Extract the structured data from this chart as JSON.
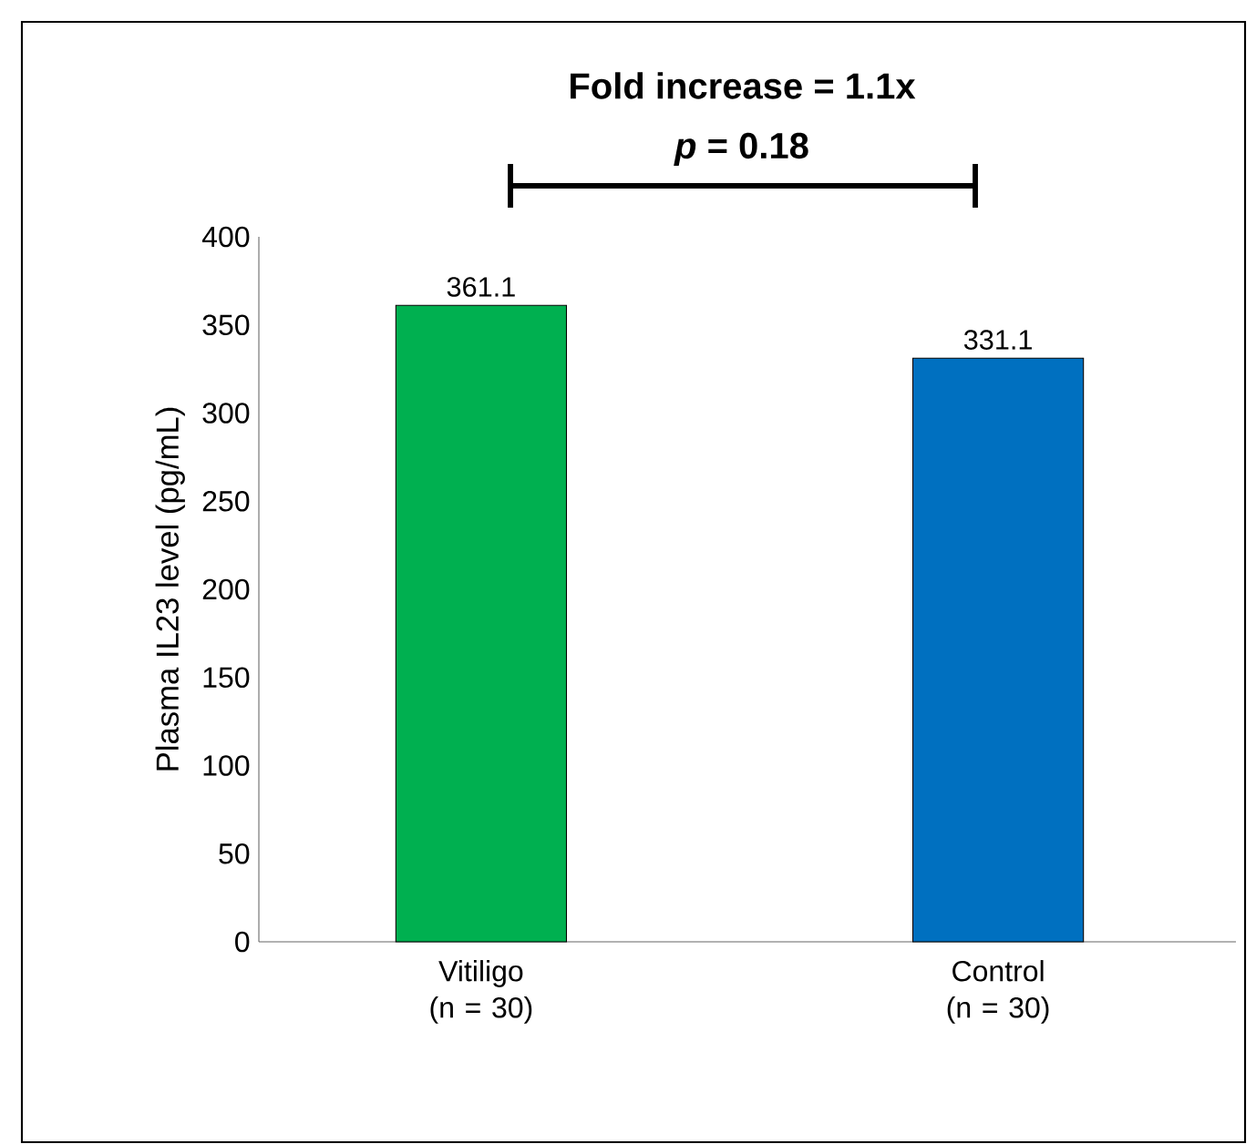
{
  "chart_data": {
    "type": "bar",
    "categories": [
      "Vitiligo (n = 30)",
      "Control (n = 30)"
    ],
    "values": [
      361.1,
      331.1
    ],
    "colors": [
      "#00b050",
      "#0070c0"
    ],
    "ylabel": "Plasma IL23 level (pg/mL)",
    "ylim": [
      0,
      400
    ],
    "yticks": [
      0,
      50,
      100,
      150,
      200,
      250,
      300,
      350,
      400
    ],
    "data_labels": true,
    "grid": false,
    "annotations": [
      "Fold increase = 1.1x",
      "*p* = 0.18"
    ]
  }
}
